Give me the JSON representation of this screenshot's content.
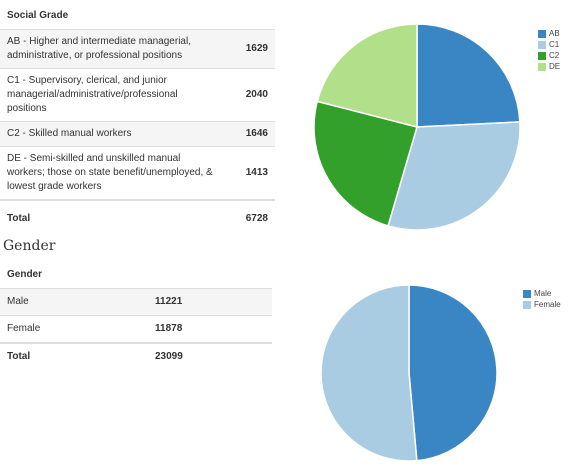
{
  "social_grade": {
    "header": "Social Grade",
    "rows": [
      {
        "label": "AB - Higher and intermediate managerial, administrative, or professional positions",
        "value": "1629"
      },
      {
        "label": "C1 - Supervisory, clerical, and junior managerial/administrative/professional positions",
        "value": "2040"
      },
      {
        "label": "C2 - Skilled manual workers",
        "value": "1646"
      },
      {
        "label": "DE - Semi-skilled and unskilled manual workers; those on state benefit/unemployed, & lowest grade workers",
        "value": "1413"
      }
    ],
    "total_label": "Total",
    "total_value": "6728"
  },
  "gender": {
    "section_title": "Gender",
    "header": "Gender",
    "rows": [
      {
        "label": "Male",
        "value": "11221"
      },
      {
        "label": "Female",
        "value": "11878"
      }
    ],
    "total_label": "Total",
    "total_value": "23099"
  },
  "chart_data": [
    {
      "type": "pie",
      "categories": [
        "AB",
        "C1",
        "C2",
        "DE"
      ],
      "values": [
        1629,
        2040,
        1646,
        1413
      ],
      "colors": [
        "#3a86c4",
        "#a9cce3",
        "#33a02c",
        "#b2df8a"
      ],
      "legend_position": "top-right"
    },
    {
      "type": "pie",
      "categories": [
        "Male",
        "Female"
      ],
      "values": [
        11221,
        11878
      ],
      "colors": [
        "#3a86c4",
        "#a9cce3"
      ],
      "legend_position": "top-right"
    }
  ]
}
